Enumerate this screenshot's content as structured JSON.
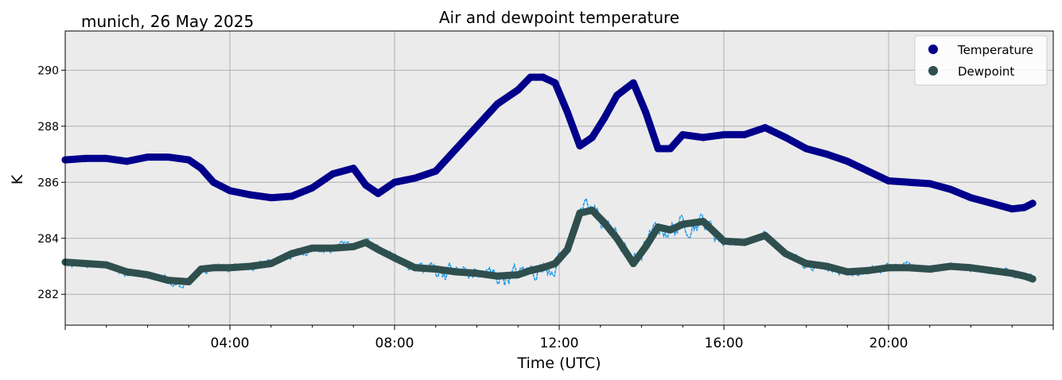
{
  "location_date": "munich, 26 May 2025",
  "chart_data": {
    "type": "line",
    "title": "Air and dewpoint temperature",
    "xlabel": "Time (UTC)",
    "ylabel": "K",
    "xlim": [
      0,
      24
    ],
    "ylim": [
      280.9,
      291.4
    ],
    "x_ticks": [
      {
        "value": 4,
        "label": "04:00"
      },
      {
        "value": 8,
        "label": "08:00"
      },
      {
        "value": 12,
        "label": "12:00"
      },
      {
        "value": 16,
        "label": "16:00"
      },
      {
        "value": 20,
        "label": "20:00"
      }
    ],
    "y_ticks": [
      {
        "value": 282,
        "label": "282"
      },
      {
        "value": 284,
        "label": "284"
      },
      {
        "value": 286,
        "label": "286"
      },
      {
        "value": 288,
        "label": "288"
      },
      {
        "value": 290,
        "label": "290"
      }
    ],
    "grid": true,
    "legend_position": "top-right",
    "colors": {
      "plot_bg": "#ebebeb",
      "grid": "#b0b0b0",
      "temperature_smooth": "#00008b",
      "temperature_raw": "#6fa3a8",
      "dewpoint_smooth": "#2f4f4f",
      "dewpoint_raw": "#1e9be8"
    },
    "series": [
      {
        "name": "Temperature",
        "x": [
          0.0,
          0.5,
          1.0,
          1.5,
          2.0,
          2.5,
          3.0,
          3.3,
          3.6,
          4.0,
          4.5,
          5.0,
          5.5,
          6.0,
          6.5,
          7.0,
          7.3,
          7.6,
          8.0,
          8.5,
          9.0,
          9.5,
          10.0,
          10.5,
          11.0,
          11.3,
          11.6,
          11.9,
          12.2,
          12.5,
          12.8,
          13.1,
          13.4,
          13.8,
          14.1,
          14.4,
          14.7,
          15.0,
          15.5,
          16.0,
          16.5,
          17.0,
          17.5,
          18.0,
          18.5,
          19.0,
          19.5,
          20.0,
          20.5,
          21.0,
          21.5,
          22.0,
          22.5,
          23.0,
          23.3,
          23.5
        ],
        "values": [
          286.8,
          286.85,
          286.85,
          286.75,
          286.9,
          286.9,
          286.8,
          286.5,
          286.0,
          285.7,
          285.55,
          285.45,
          285.5,
          285.8,
          286.3,
          286.5,
          285.9,
          285.6,
          286.0,
          286.15,
          286.4,
          287.2,
          288.0,
          288.8,
          289.3,
          289.75,
          289.75,
          289.55,
          288.5,
          287.3,
          287.6,
          288.3,
          289.1,
          289.55,
          288.5,
          287.2,
          287.2,
          287.7,
          287.6,
          287.7,
          287.7,
          287.95,
          287.6,
          287.2,
          287.0,
          286.75,
          286.4,
          286.05,
          286.0,
          285.95,
          285.75,
          285.45,
          285.25,
          285.05,
          285.1,
          285.25
        ]
      },
      {
        "name": "Dewpoint",
        "x": [
          0.0,
          0.5,
          1.0,
          1.5,
          2.0,
          2.5,
          3.0,
          3.3,
          3.6,
          4.0,
          4.5,
          5.0,
          5.5,
          6.0,
          6.5,
          7.0,
          7.3,
          7.6,
          8.0,
          8.5,
          9.0,
          9.5,
          10.0,
          10.5,
          11.0,
          11.3,
          11.6,
          11.9,
          12.2,
          12.5,
          12.8,
          13.1,
          13.4,
          13.8,
          14.1,
          14.4,
          14.7,
          15.0,
          15.5,
          16.0,
          16.5,
          17.0,
          17.5,
          18.0,
          18.5,
          19.0,
          19.5,
          20.0,
          20.5,
          21.0,
          21.5,
          22.0,
          22.5,
          23.0,
          23.3,
          23.5
        ],
        "values": [
          283.15,
          283.1,
          283.05,
          282.8,
          282.7,
          282.5,
          282.45,
          282.9,
          282.95,
          282.95,
          283.0,
          283.1,
          283.45,
          283.65,
          283.65,
          283.7,
          283.85,
          283.6,
          283.3,
          282.95,
          282.9,
          282.8,
          282.75,
          282.65,
          282.7,
          282.85,
          282.95,
          283.1,
          283.6,
          284.9,
          285.0,
          284.55,
          284.0,
          283.1,
          283.7,
          284.4,
          284.3,
          284.5,
          284.6,
          283.9,
          283.85,
          284.1,
          283.45,
          283.1,
          283.0,
          282.8,
          282.85,
          282.95,
          282.95,
          282.9,
          283.0,
          282.95,
          282.85,
          282.75,
          282.65,
          282.55
        ]
      }
    ]
  }
}
